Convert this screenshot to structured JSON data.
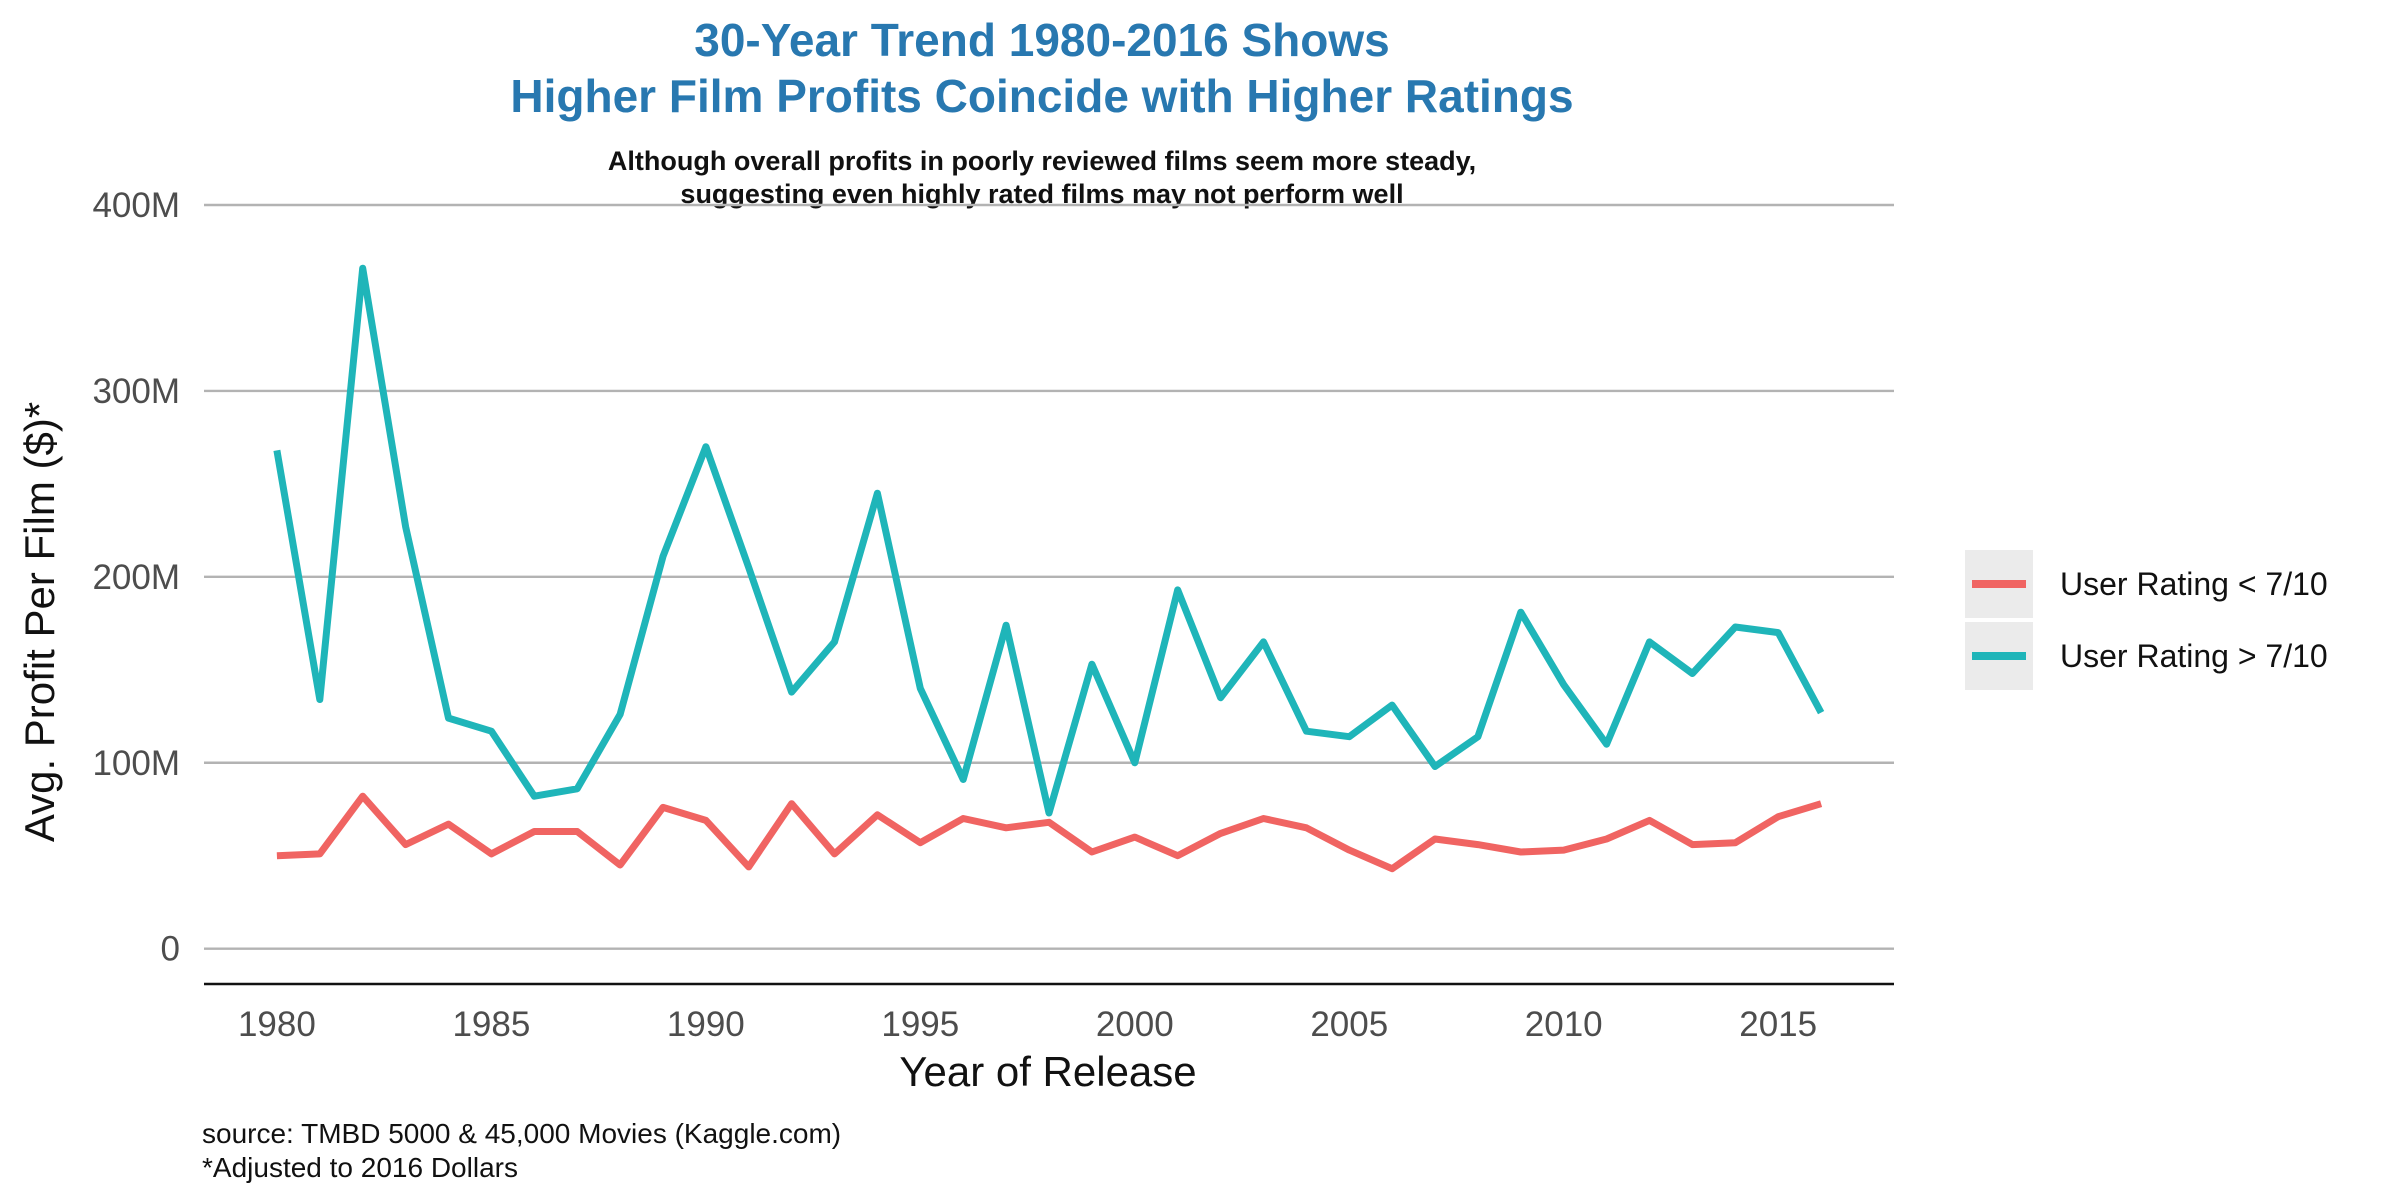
{
  "chart_data": {
    "type": "line",
    "title_line1": "30-Year Trend 1980-2016 Shows",
    "title_line2": "Higher Film Profits Coincide with Higher Ratings",
    "subtitle_line1": "Although overall profits in poorly reviewed films seem more steady,",
    "subtitle_line2": "suggesting even highly rated films may not perform well",
    "xlabel": "Year of Release",
    "ylabel": "Avg. Profit Per Film ($)*",
    "caption_line1": "source: TMBD 5000 & 45,000 Movies (Kaggle.com)",
    "caption_line2": "*Adjusted to 2016 Dollars",
    "xlim": [
      1978.3,
      2017.7
    ],
    "ylim": [
      -19000000,
      400000000
    ],
    "x_ticks": [
      1980,
      1985,
      1990,
      1995,
      2000,
      2005,
      2010,
      2015
    ],
    "x_tick_labels": [
      "1980",
      "1985",
      "1990",
      "1995",
      "2000",
      "2005",
      "2010",
      "2015"
    ],
    "y_ticks": [
      0,
      100000000,
      200000000,
      300000000,
      400000000
    ],
    "y_tick_labels": [
      "0",
      "100M",
      "200M",
      "300M",
      "400M"
    ],
    "grid": "horizontal",
    "legend_position": "right",
    "x": [
      1980,
      1981,
      1982,
      1983,
      1984,
      1985,
      1986,
      1987,
      1988,
      1989,
      1990,
      1991,
      1992,
      1993,
      1994,
      1995,
      1996,
      1997,
      1998,
      1999,
      2000,
      2001,
      2002,
      2003,
      2004,
      2005,
      2006,
      2007,
      2008,
      2009,
      2010,
      2011,
      2012,
      2013,
      2014,
      2015,
      2016
    ],
    "series": [
      {
        "name": "User Rating < 7/10",
        "color": "#f06462",
        "values": [
          50000000,
          51000000,
          82000000,
          56000000,
          67000000,
          51000000,
          63000000,
          63000000,
          45000000,
          76000000,
          69000000,
          44000000,
          78000000,
          51000000,
          72000000,
          57000000,
          70000000,
          65000000,
          68000000,
          52000000,
          60000000,
          50000000,
          62000000,
          70000000,
          65000000,
          53000000,
          43000000,
          59000000,
          56000000,
          52000000,
          53000000,
          59000000,
          69000000,
          56000000,
          57000000,
          71000000,
          78000000
        ]
      },
      {
        "name": "User Rating > 7/10",
        "color": "#1fb5b9",
        "values": [
          268000000,
          134000000,
          366000000,
          227000000,
          124000000,
          117000000,
          82000000,
          86000000,
          126000000,
          211000000,
          270000000,
          205000000,
          138000000,
          165000000,
          245000000,
          140000000,
          91000000,
          174000000,
          73000000,
          153000000,
          100000000,
          193000000,
          135000000,
          165000000,
          117000000,
          114000000,
          131000000,
          98000000,
          114000000,
          181000000,
          142000000,
          110000000,
          165000000,
          148000000,
          173000000,
          170000000,
          127000000
        ]
      }
    ]
  }
}
